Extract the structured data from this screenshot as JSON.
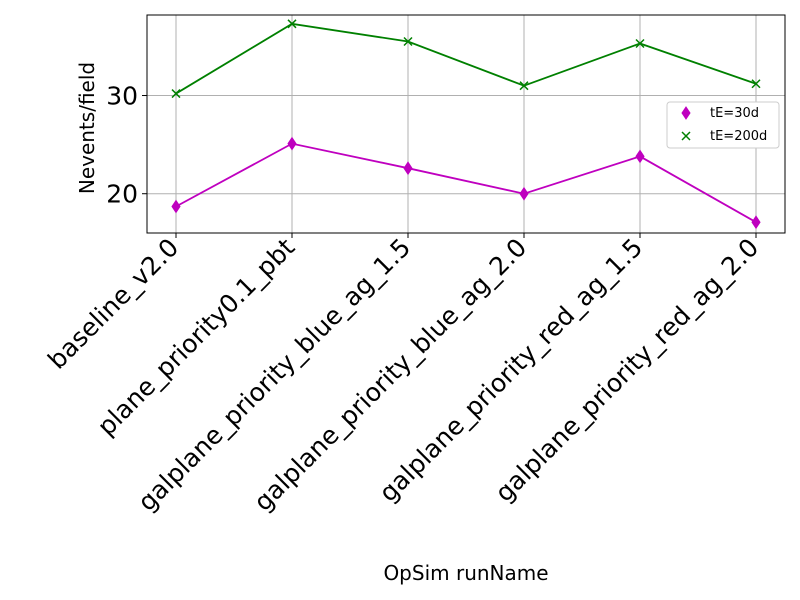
{
  "chart_data": {
    "type": "line",
    "title": "",
    "xlabel": "OpSim runName",
    "ylabel": "Nevents/field",
    "categories": [
      "baseline_v2.0",
      "plane_priority0.1_pbt",
      "galplane_priority_blue_ag_1.5",
      "galplane_priority_blue_ag_2.0",
      "galplane_priority_red_ag_1.5",
      "galplane_priority_red_ag_2.0"
    ],
    "ylim": [
      16.0,
      38.2
    ],
    "yticks": [
      20,
      30
    ],
    "grid": true,
    "legend_position": "right",
    "series": [
      {
        "name": "tE=30d",
        "marker": "diamond",
        "color": "#bf00bf",
        "values": [
          18.7,
          25.1,
          22.6,
          20.0,
          23.8,
          17.1
        ]
      },
      {
        "name": "tE=200d",
        "marker": "x",
        "color": "#008000",
        "values": [
          30.2,
          37.3,
          35.5,
          31.0,
          35.3,
          31.2
        ]
      }
    ]
  }
}
